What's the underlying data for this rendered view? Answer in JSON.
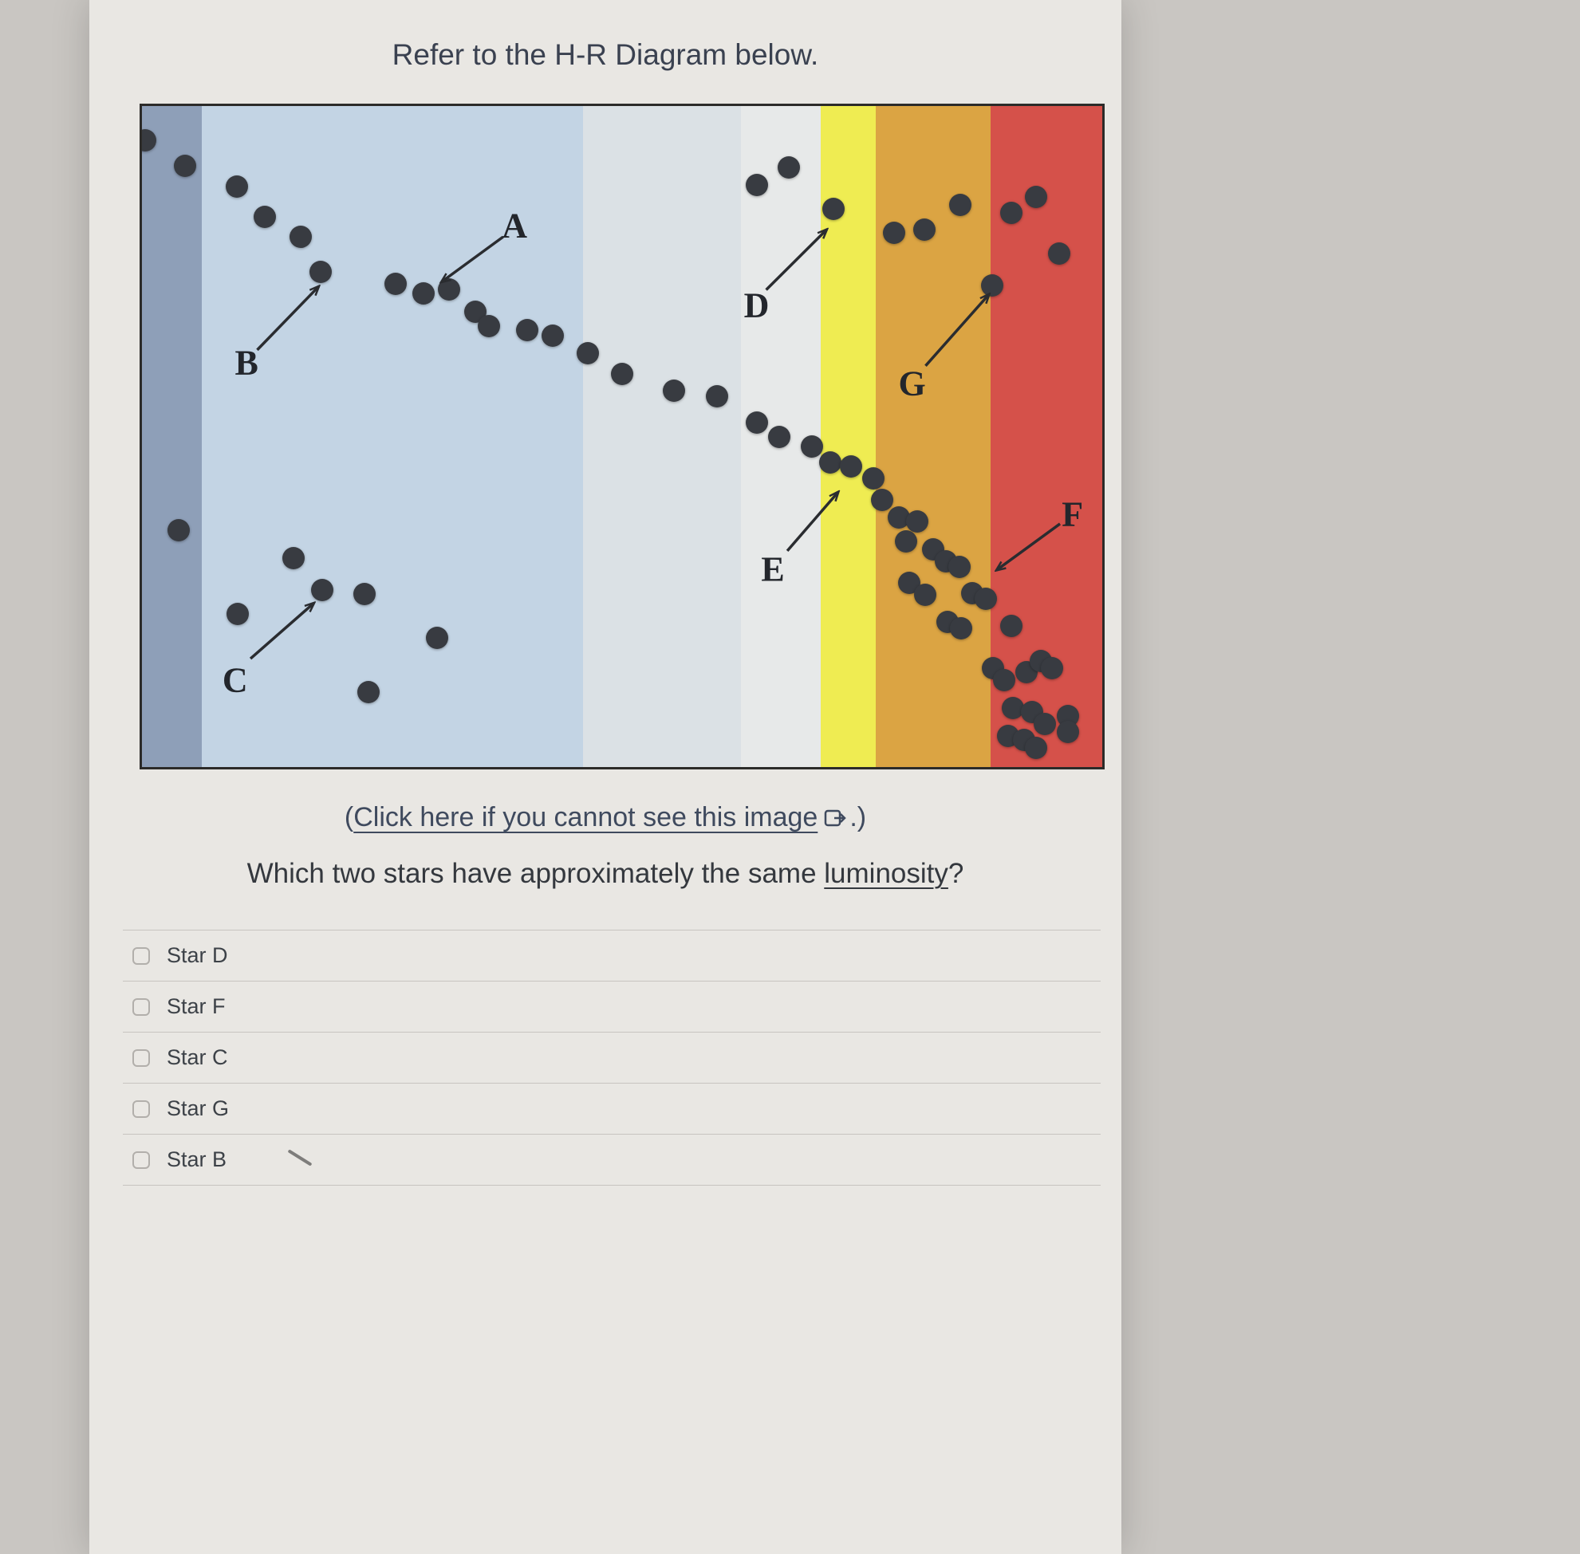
{
  "title": "Refer to the H-R Diagram below.",
  "fallback": {
    "prefix": "(",
    "link_text": "Click here if you cannot see this image",
    "icon": "external-link-icon",
    "suffix": ".)"
  },
  "question": {
    "before": "Which two stars have approximately the same ",
    "term": "luminosity",
    "after": "?"
  },
  "options": [
    "Star D",
    "Star F",
    "Star C",
    "Star G",
    "Star B"
  ],
  "chart_data": {
    "type": "scatter",
    "title": "H-R Diagram",
    "axes_visible": false,
    "dot_color": "#383b41",
    "border_color": "#2c2b29",
    "bands": [
      {
        "name": "blue-gray",
        "from": 0,
        "to": 6.2,
        "color": "#8e9fb8"
      },
      {
        "name": "light-blue",
        "from": 6.2,
        "to": 45.9,
        "color": "#c3d4e4"
      },
      {
        "name": "pale-blue",
        "from": 45.9,
        "to": 62.4,
        "color": "#dbe1e5"
      },
      {
        "name": "white",
        "from": 62.4,
        "to": 70.7,
        "color": "#e7e9e9"
      },
      {
        "name": "yellow",
        "from": 70.7,
        "to": 76.4,
        "color": "#efec52"
      },
      {
        "name": "orange",
        "from": 76.4,
        "to": 88.4,
        "color": "#dba443"
      },
      {
        "name": "red",
        "from": 88.4,
        "to": 100,
        "color": "#d5514a"
      }
    ],
    "star_points_pct": [
      [
        0.3,
        5.2
      ],
      [
        4.5,
        9.0
      ],
      [
        9.9,
        12.2
      ],
      [
        12.8,
        16.8
      ],
      [
        16.5,
        19.8
      ],
      [
        18.6,
        25.1
      ],
      [
        26.4,
        26.9
      ],
      [
        29.3,
        28.4
      ],
      [
        32.0,
        27.8
      ],
      [
        34.7,
        31.1
      ],
      [
        36.1,
        33.3
      ],
      [
        40.1,
        33.9
      ],
      [
        42.8,
        34.7
      ],
      [
        46.4,
        37.4
      ],
      [
        50.0,
        40.5
      ],
      [
        55.4,
        43.1
      ],
      [
        59.9,
        43.9
      ],
      [
        64.0,
        47.9
      ],
      [
        66.4,
        50.1
      ],
      [
        69.8,
        51.5
      ],
      [
        71.7,
        53.9
      ],
      [
        73.8,
        54.5
      ],
      [
        76.2,
        56.3
      ],
      [
        77.1,
        59.6
      ],
      [
        78.8,
        62.3
      ],
      [
        80.7,
        62.9
      ],
      [
        79.6,
        65.9
      ],
      [
        82.4,
        67.1
      ],
      [
        83.7,
        68.9
      ],
      [
        85.1,
        69.7
      ],
      [
        79.9,
        72.1
      ],
      [
        81.6,
        74.0
      ],
      [
        83.9,
        78.1
      ],
      [
        85.3,
        79.0
      ],
      [
        86.5,
        73.7
      ],
      [
        87.9,
        74.5
      ],
      [
        90.5,
        78.7
      ],
      [
        88.6,
        85.0
      ],
      [
        89.8,
        86.8
      ],
      [
        92.1,
        85.7
      ],
      [
        93.6,
        83.9
      ],
      [
        94.8,
        85.1
      ],
      [
        90.7,
        91.1
      ],
      [
        92.7,
        91.7
      ],
      [
        94.0,
        93.5
      ],
      [
        96.4,
        92.3
      ],
      [
        90.2,
        95.3
      ],
      [
        91.9,
        95.9
      ],
      [
        96.4,
        94.7
      ],
      [
        93.1,
        97.1
      ],
      [
        64.0,
        12.0
      ],
      [
        67.4,
        9.3
      ],
      [
        72.0,
        15.6
      ],
      [
        78.3,
        19.2
      ],
      [
        81.5,
        18.7
      ],
      [
        85.2,
        15.0
      ],
      [
        90.5,
        16.2
      ],
      [
        93.1,
        13.8
      ],
      [
        95.5,
        22.3
      ],
      [
        88.5,
        27.1
      ],
      [
        3.8,
        64.2
      ],
      [
        15.8,
        68.4
      ],
      [
        10.0,
        76.8
      ],
      [
        18.8,
        73.2
      ],
      [
        23.2,
        73.8
      ],
      [
        30.7,
        80.4
      ],
      [
        23.6,
        88.7
      ]
    ],
    "star_labels": [
      {
        "text": "A",
        "x": 38.8,
        "y": 18.1,
        "arrow": [
          37.6,
          19.8,
          31.2,
          26.6
        ]
      },
      {
        "text": "B",
        "x": 10.9,
        "y": 38.9,
        "arrow": [
          12.0,
          36.9,
          18.4,
          27.3
        ]
      },
      {
        "text": "C",
        "x": 9.7,
        "y": 86.8,
        "arrow": [
          11.3,
          83.6,
          17.9,
          75.2
        ]
      },
      {
        "text": "D",
        "x": 64.0,
        "y": 30.2,
        "arrow": [
          65.0,
          27.8,
          71.3,
          18.7
        ]
      },
      {
        "text": "E",
        "x": 65.7,
        "y": 70.1,
        "arrow": [
          67.2,
          67.3,
          72.5,
          58.4
        ]
      },
      {
        "text": "F",
        "x": 96.9,
        "y": 61.8,
        "arrow": [
          95.6,
          63.2,
          89.0,
          70.2
        ]
      },
      {
        "text": "G",
        "x": 80.2,
        "y": 42.0,
        "arrow": [
          81.6,
          39.3,
          88.2,
          28.5
        ]
      }
    ]
  }
}
